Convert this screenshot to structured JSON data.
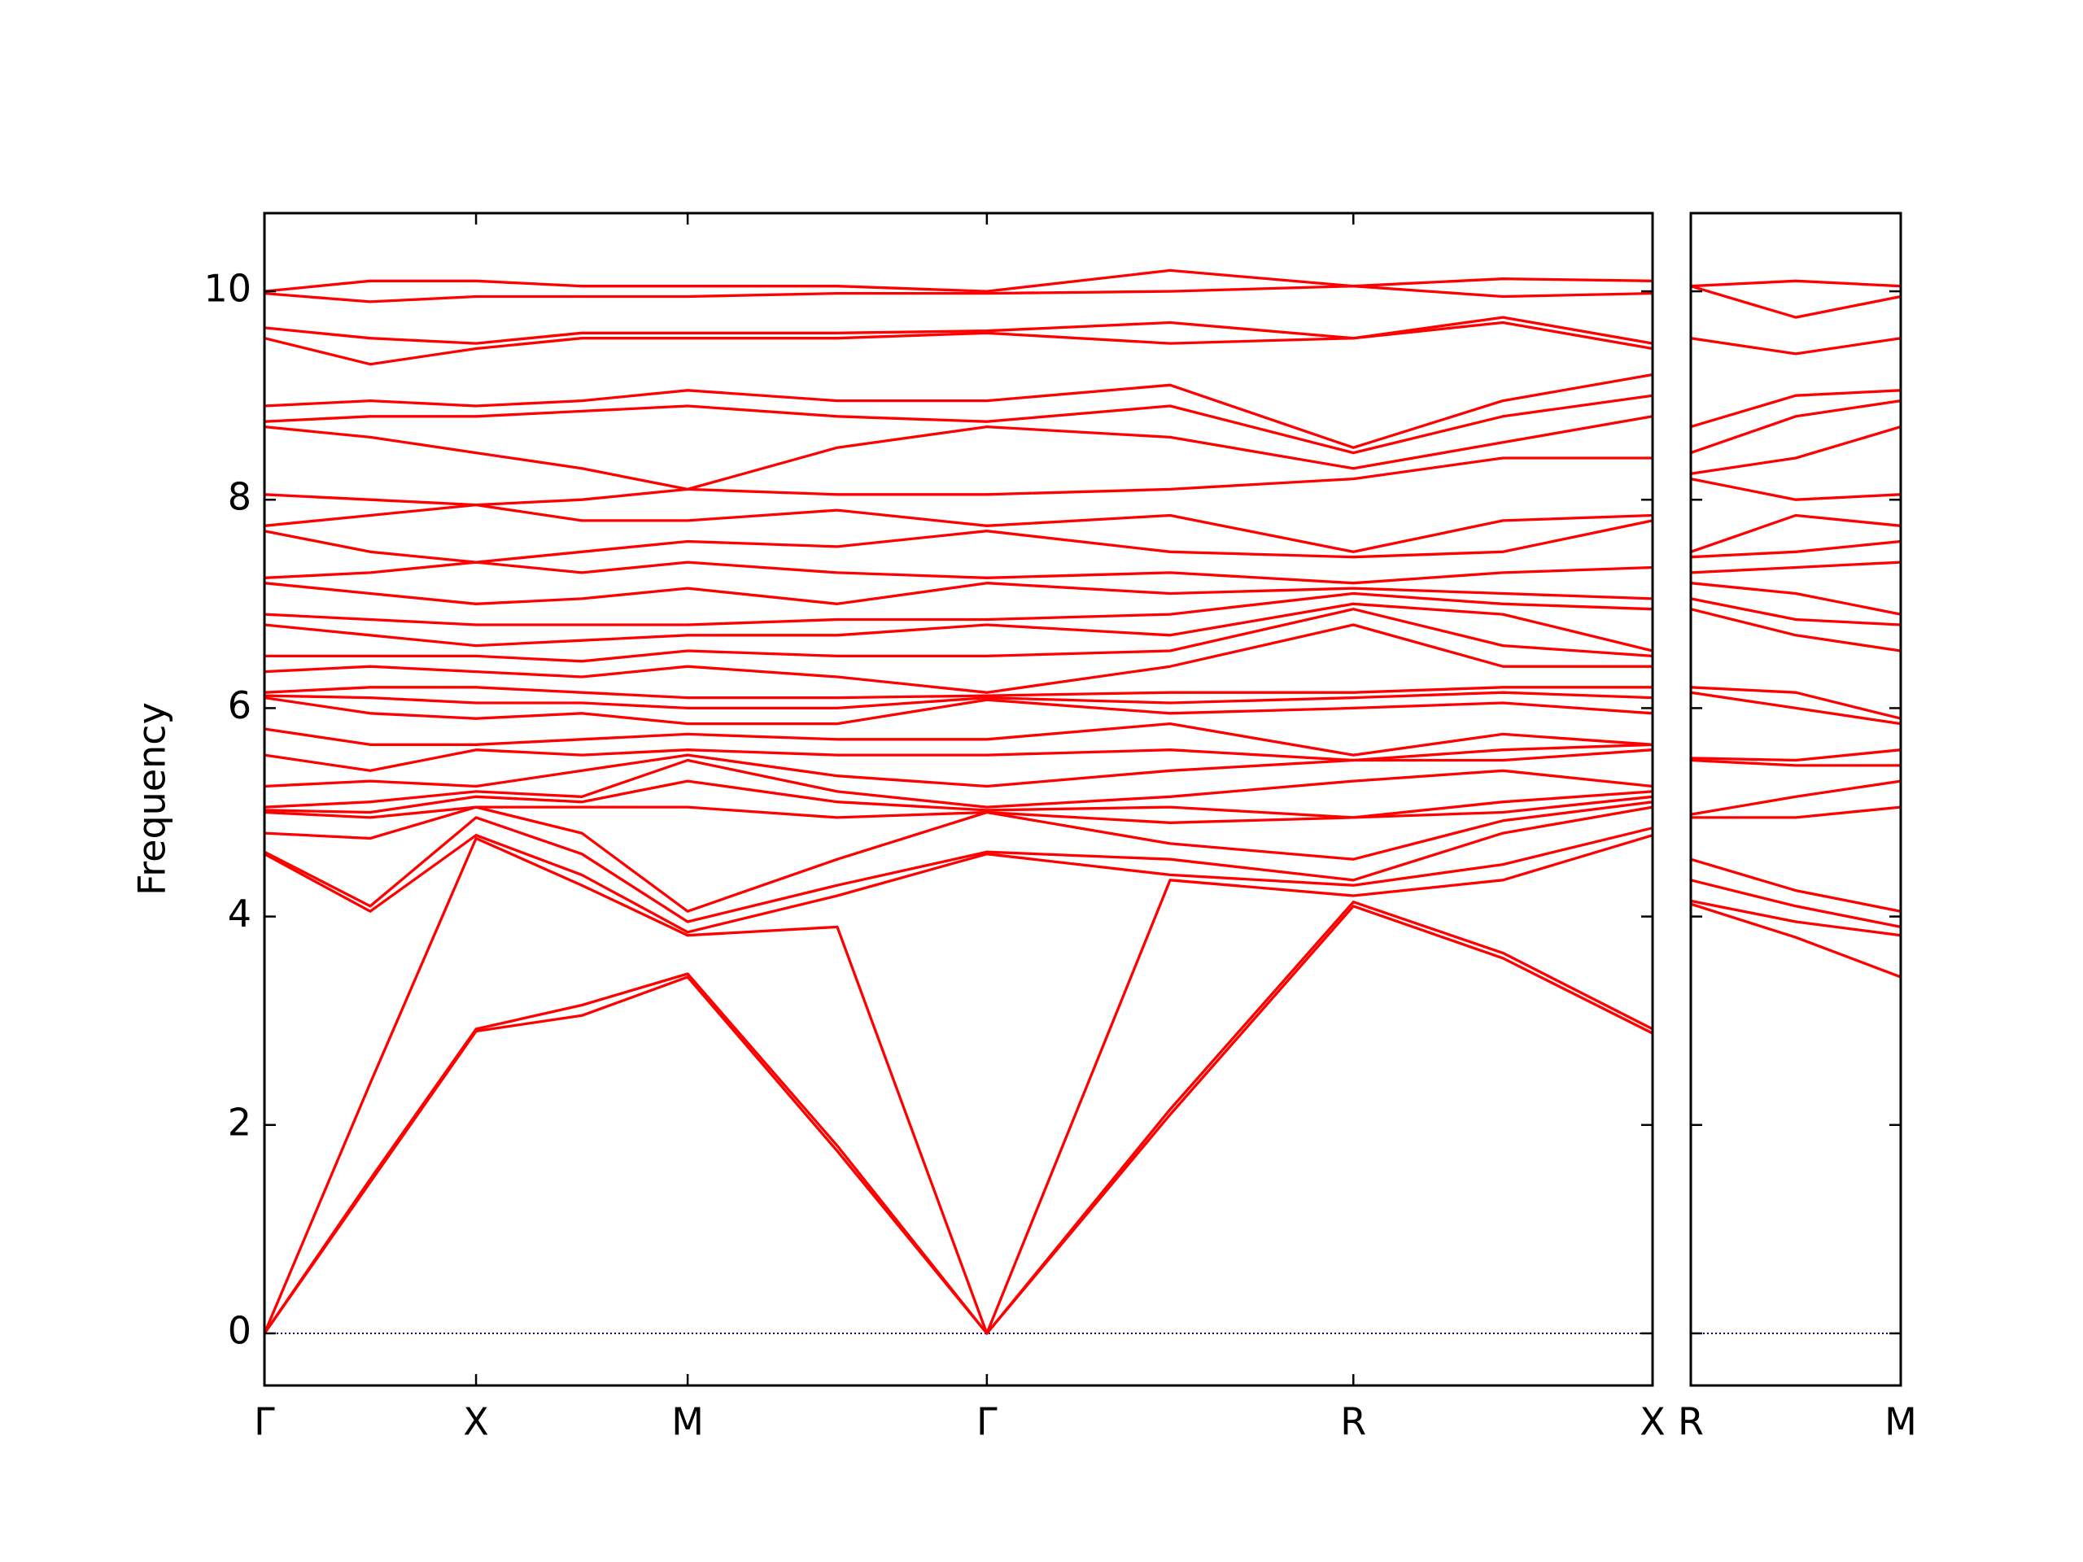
{
  "chart_data": [
    {
      "type": "line",
      "y_label": "Frequency",
      "color": "#ff0000",
      "zero_line": true,
      "zero_line_color": "#00008b",
      "xlim": [
        0,
        6.56
      ],
      "ylim": [
        -0.5,
        10.75
      ],
      "yticks": [
        0,
        2,
        4,
        6,
        8,
        10
      ],
      "ytick_labels": true,
      "xticks": [
        {
          "value": 0,
          "label": "Γ"
        },
        {
          "value": 1,
          "label": "X"
        },
        {
          "value": 2,
          "label": "M"
        },
        {
          "value": 3.414,
          "label": "Γ"
        },
        {
          "value": 5.146,
          "label": "R"
        },
        {
          "value": 6.56,
          "label": "X"
        }
      ],
      "x": [
        0,
        0.5,
        1,
        1.5,
        2,
        2.707,
        3.414,
        4.28,
        5.146,
        5.853,
        6.56
      ],
      "series": [
        {
          "values": [
            0,
            1.45,
            2.9,
            3.05,
            3.42,
            1.75,
            0,
            2.1,
            4.1,
            3.6,
            2.88
          ]
        },
        {
          "values": [
            0,
            1.48,
            2.92,
            3.15,
            3.45,
            1.8,
            0,
            2.15,
            4.14,
            3.65,
            2.92
          ]
        },
        {
          "values": [
            0,
            2.4,
            4.75,
            4.3,
            3.82,
            3.9,
            0,
            4.35,
            4.2,
            4.35,
            4.78
          ]
        },
        {
          "values": [
            4.6,
            4.05,
            4.78,
            4.4,
            3.85,
            4.2,
            4.6,
            4.4,
            4.3,
            4.5,
            4.85
          ]
        },
        {
          "values": [
            4.62,
            4.1,
            4.95,
            4.6,
            3.95,
            4.3,
            4.62,
            4.55,
            4.35,
            4.8,
            5.05
          ]
        },
        {
          "values": [
            4.8,
            4.75,
            5.05,
            4.8,
            4.05,
            4.55,
            5.0,
            4.7,
            4.55,
            4.92,
            5.1
          ]
        },
        {
          "values": [
            5.0,
            4.95,
            5.05,
            5.05,
            5.05,
            4.95,
            5.0,
            4.9,
            4.95,
            5.0,
            5.15
          ]
        },
        {
          "values": [
            5.02,
            5.0,
            5.15,
            5.1,
            5.3,
            5.1,
            5.02,
            5.05,
            4.95,
            5.1,
            5.2
          ]
        },
        {
          "values": [
            5.05,
            5.1,
            5.2,
            5.15,
            5.5,
            5.2,
            5.05,
            5.15,
            5.3,
            5.4,
            5.25
          ]
        },
        {
          "values": [
            5.25,
            5.3,
            5.25,
            5.4,
            5.55,
            5.35,
            5.25,
            5.4,
            5.5,
            5.5,
            5.6
          ]
        },
        {
          "values": [
            5.55,
            5.4,
            5.6,
            5.55,
            5.6,
            5.55,
            5.55,
            5.6,
            5.5,
            5.6,
            5.65
          ]
        },
        {
          "values": [
            5.8,
            5.65,
            5.65,
            5.7,
            5.75,
            5.7,
            5.7,
            5.85,
            5.55,
            5.75,
            5.65
          ]
        },
        {
          "values": [
            6.1,
            5.95,
            5.9,
            5.95,
            5.85,
            5.85,
            6.08,
            5.95,
            6.0,
            6.05,
            5.95
          ]
        },
        {
          "values": [
            6.12,
            6.1,
            6.05,
            6.05,
            6.0,
            6.0,
            6.1,
            6.05,
            6.1,
            6.15,
            6.1
          ]
        },
        {
          "values": [
            6.15,
            6.2,
            6.2,
            6.15,
            6.1,
            6.1,
            6.12,
            6.15,
            6.15,
            6.2,
            6.2
          ]
        },
        {
          "values": [
            6.35,
            6.4,
            6.35,
            6.3,
            6.4,
            6.3,
            6.15,
            6.4,
            6.8,
            6.4,
            6.4
          ]
        },
        {
          "values": [
            6.5,
            6.5,
            6.5,
            6.45,
            6.55,
            6.5,
            6.5,
            6.55,
            6.95,
            6.6,
            6.5
          ]
        },
        {
          "values": [
            6.8,
            6.7,
            6.6,
            6.65,
            6.7,
            6.7,
            6.8,
            6.7,
            7.0,
            6.9,
            6.55
          ]
        },
        {
          "values": [
            6.9,
            6.85,
            6.8,
            6.8,
            6.8,
            6.85,
            6.85,
            6.9,
            7.1,
            7.0,
            6.95
          ]
        },
        {
          "values": [
            7.2,
            7.1,
            7.0,
            7.05,
            7.15,
            7.0,
            7.2,
            7.1,
            7.15,
            7.1,
            7.05
          ]
        },
        {
          "values": [
            7.25,
            7.3,
            7.4,
            7.3,
            7.4,
            7.3,
            7.25,
            7.3,
            7.2,
            7.3,
            7.35
          ]
        },
        {
          "values": [
            7.7,
            7.5,
            7.4,
            7.5,
            7.6,
            7.55,
            7.7,
            7.5,
            7.45,
            7.5,
            7.8
          ]
        },
        {
          "values": [
            7.75,
            7.85,
            7.95,
            7.8,
            7.8,
            7.9,
            7.75,
            7.85,
            7.5,
            7.8,
            7.85
          ]
        },
        {
          "values": [
            8.05,
            8.0,
            7.95,
            8.0,
            8.1,
            8.05,
            8.05,
            8.1,
            8.2,
            8.4,
            8.4
          ]
        },
        {
          "values": [
            8.7,
            8.6,
            8.45,
            8.3,
            8.1,
            8.5,
            8.7,
            8.6,
            8.3,
            8.55,
            8.8
          ]
        },
        {
          "values": [
            8.75,
            8.8,
            8.8,
            8.85,
            8.9,
            8.8,
            8.75,
            8.9,
            8.45,
            8.8,
            9.0
          ]
        },
        {
          "values": [
            8.9,
            8.95,
            8.9,
            8.95,
            9.05,
            8.95,
            8.95,
            9.1,
            8.5,
            8.95,
            9.2
          ]
        },
        {
          "values": [
            9.55,
            9.3,
            9.45,
            9.55,
            9.55,
            9.55,
            9.6,
            9.5,
            9.55,
            9.7,
            9.45
          ]
        },
        {
          "values": [
            9.65,
            9.55,
            9.5,
            9.6,
            9.6,
            9.6,
            9.62,
            9.7,
            9.55,
            9.75,
            9.5
          ]
        },
        {
          "values": [
            9.98,
            9.9,
            9.95,
            9.95,
            9.95,
            9.98,
            9.98,
            10.0,
            10.05,
            9.95,
            9.98
          ]
        },
        {
          "values": [
            10.0,
            10.1,
            10.1,
            10.05,
            10.05,
            10.05,
            10.0,
            10.2,
            10.05,
            10.12,
            10.1
          ]
        }
      ]
    },
    {
      "type": "line",
      "color": "#ff0000",
      "zero_line": true,
      "zero_line_color": "#00008b",
      "xlim": [
        0,
        1
      ],
      "ylim": [
        -0.5,
        10.75
      ],
      "yticks": [
        0,
        2,
        4,
        6,
        8,
        10
      ],
      "ytick_labels": false,
      "xticks": [
        {
          "value": 0,
          "label": "R"
        },
        {
          "value": 1,
          "label": "M"
        }
      ],
      "x": [
        0,
        0.5,
        1
      ],
      "series": [
        {
          "values": [
            4.12,
            3.8,
            3.42
          ]
        },
        {
          "values": [
            4.15,
            3.95,
            3.82
          ]
        },
        {
          "values": [
            4.35,
            4.1,
            3.9
          ]
        },
        {
          "values": [
            4.55,
            4.25,
            4.05
          ]
        },
        {
          "values": [
            4.95,
            4.95,
            5.05
          ]
        },
        {
          "values": [
            4.98,
            5.15,
            5.3
          ]
        },
        {
          "values": [
            5.5,
            5.45,
            5.45
          ]
        },
        {
          "values": [
            5.52,
            5.5,
            5.6
          ]
        },
        {
          "values": [
            6.15,
            6.0,
            5.85
          ]
        },
        {
          "values": [
            6.2,
            6.15,
            5.9
          ]
        },
        {
          "values": [
            6.95,
            6.7,
            6.55
          ]
        },
        {
          "values": [
            7.05,
            6.85,
            6.8
          ]
        },
        {
          "values": [
            7.2,
            7.1,
            6.9
          ]
        },
        {
          "values": [
            7.3,
            7.35,
            7.4
          ]
        },
        {
          "values": [
            7.45,
            7.5,
            7.6
          ]
        },
        {
          "values": [
            7.5,
            7.85,
            7.75
          ]
        },
        {
          "values": [
            8.2,
            8.0,
            8.05
          ]
        },
        {
          "values": [
            8.25,
            8.4,
            8.7
          ]
        },
        {
          "values": [
            8.45,
            8.8,
            8.95
          ]
        },
        {
          "values": [
            8.7,
            9.0,
            9.05
          ]
        },
        {
          "values": [
            9.55,
            9.4,
            9.55
          ]
        },
        {
          "values": [
            10.05,
            9.75,
            9.95
          ]
        },
        {
          "values": [
            10.05,
            10.1,
            10.05
          ]
        }
      ]
    }
  ]
}
